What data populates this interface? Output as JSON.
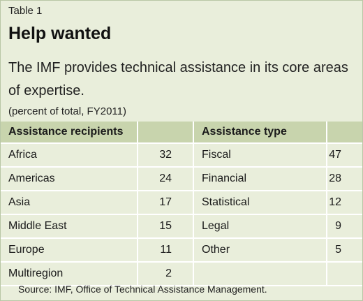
{
  "label": "Table 1",
  "title": "Help wanted",
  "subtitle": "The IMF provides technical assistance in its core areas of expertise.",
  "unit": "(percent of total, FY2011)",
  "headers": {
    "recipients": "Assistance recipients",
    "type": "Assistance type"
  },
  "rows": [
    {
      "recipient": "Africa",
      "recipient_value": "32",
      "type": "Fiscal",
      "type_value": "47"
    },
    {
      "recipient": "Americas",
      "recipient_value": "24",
      "type": "Financial",
      "type_value": "28"
    },
    {
      "recipient": "Asia",
      "recipient_value": "17",
      "type": "Statistical",
      "type_value": "12"
    },
    {
      "recipient": "Middle East",
      "recipient_value": "15",
      "type": "Legal",
      "type_value": "9"
    },
    {
      "recipient": "Europe",
      "recipient_value": "11",
      "type": "Other",
      "type_value": "5"
    },
    {
      "recipient": "Multiregion",
      "recipient_value": "2",
      "type": "",
      "type_value": ""
    }
  ],
  "source": "Source: IMF, Office of Technical Assistance Management.",
  "colors": {
    "background": "#e9eedb",
    "header_band": "#c8d4ad",
    "grid_lines": "#ffffff"
  }
}
